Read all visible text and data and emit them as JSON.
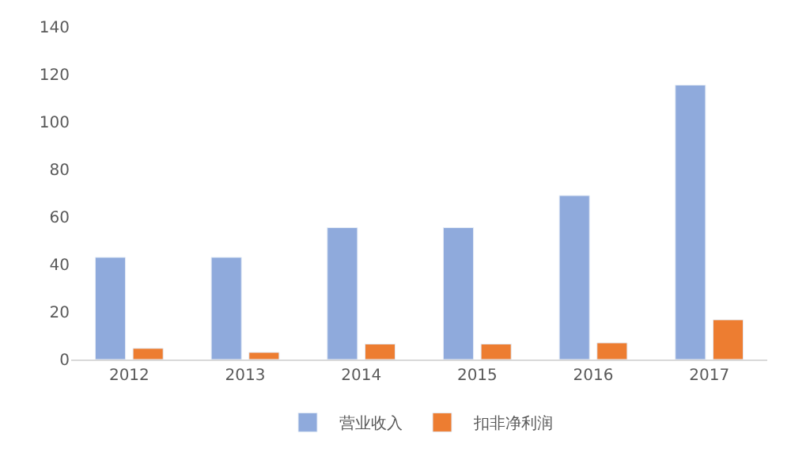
{
  "chart_data": {
    "type": "bar",
    "categories": [
      "2012",
      "2013",
      "2014",
      "2015",
      "2016",
      "2017"
    ],
    "series": [
      {
        "name": "营业收入",
        "color": "#8faadc",
        "values": [
          43,
          43,
          55.5,
          55.5,
          69,
          115.5
        ]
      },
      {
        "name": "扣非净利润",
        "color": "#ed7d31",
        "values": [
          4.7,
          3,
          6.5,
          6.5,
          7,
          16.7
        ]
      }
    ],
    "ylim": [
      0,
      140
    ],
    "yticks": [
      0,
      20,
      40,
      60,
      80,
      100,
      120,
      140
    ],
    "legend": "bottom"
  }
}
